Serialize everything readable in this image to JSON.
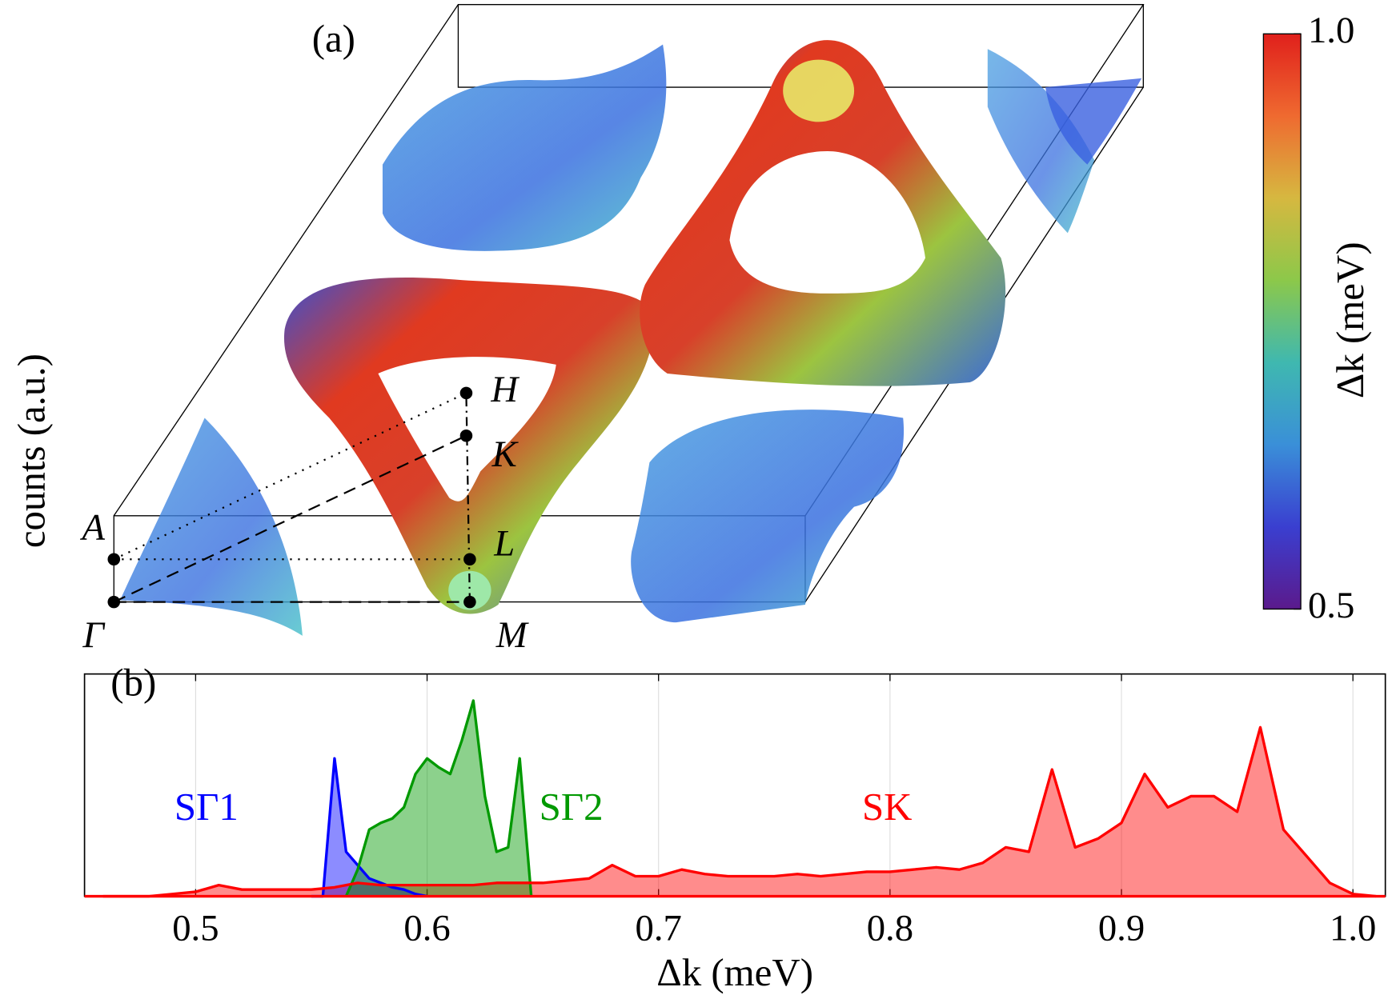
{
  "chart_data": [
    {
      "type": "surface",
      "label": "(a)",
      "colorbar_label": "Δk (meV)",
      "clim": [
        0.5,
        1.0
      ],
      "cticks": [
        0.5,
        {
          "value": 1.0,
          "label": "1.0"
        }
      ],
      "colormap": [
        "#5b1a8c",
        "#3a3fd0",
        "#3a8fd8",
        "#3fb8b0",
        "#8cc84a",
        "#d6b840",
        "#ef6a30",
        "#e0201c"
      ],
      "points": [
        "Γ",
        "A",
        "M",
        "L",
        "K",
        "H"
      ]
    },
    {
      "type": "area",
      "label": "(b)",
      "xlabel": "Δk (meV)",
      "ylabel": "counts (a.u.)",
      "xlim": [
        0.452,
        1.014
      ],
      "ylim": [
        0,
        100
      ],
      "xticks": [
        0.5,
        0.6,
        0.7,
        0.8,
        0.9,
        {
          "value": 1.0,
          "label": "1.0"
        }
      ],
      "grid": true,
      "series": [
        {
          "name": "SΓ1",
          "color": "#0000ff",
          "x": [
            0.55,
            0.555,
            0.56,
            0.565,
            0.57,
            0.575,
            0.58,
            0.585,
            0.59,
            0.595,
            0.6
          ],
          "values": [
            0,
            0,
            62,
            20,
            14,
            8,
            6,
            4,
            3,
            1,
            0
          ]
        },
        {
          "name": "SΓ2",
          "color": "#009900",
          "x": [
            0.565,
            0.57,
            0.575,
            0.58,
            0.585,
            0.59,
            0.595,
            0.6,
            0.605,
            0.61,
            0.615,
            0.62,
            0.625,
            0.63,
            0.635,
            0.64,
            0.645
          ],
          "values": [
            0,
            12,
            30,
            33,
            35,
            40,
            55,
            62,
            58,
            55,
            70,
            88,
            45,
            20,
            22,
            62,
            0
          ]
        },
        {
          "name": "SK",
          "color": "#ff0000",
          "x": [
            0.46,
            0.47,
            0.48,
            0.49,
            0.5,
            0.51,
            0.52,
            0.53,
            0.54,
            0.55,
            0.56,
            0.57,
            0.58,
            0.59,
            0.6,
            0.61,
            0.62,
            0.63,
            0.64,
            0.65,
            0.66,
            0.67,
            0.68,
            0.69,
            0.7,
            0.71,
            0.72,
            0.73,
            0.74,
            0.75,
            0.76,
            0.77,
            0.78,
            0.79,
            0.8,
            0.81,
            0.82,
            0.83,
            0.84,
            0.85,
            0.86,
            0.87,
            0.88,
            0.89,
            0.9,
            0.91,
            0.92,
            0.93,
            0.94,
            0.95,
            0.96,
            0.97,
            0.98,
            0.99,
            1.0,
            1.01
          ],
          "values": [
            0,
            0,
            0,
            1,
            2,
            5,
            3,
            3,
            3,
            3,
            4,
            6,
            5,
            5,
            5,
            5,
            5,
            6,
            6,
            6,
            7,
            8,
            14,
            9,
            9,
            12,
            10,
            9,
            9,
            9,
            10,
            9,
            10,
            11,
            11,
            12,
            13,
            12,
            15,
            22,
            20,
            57,
            22,
            26,
            33,
            55,
            40,
            45,
            45,
            38,
            76,
            30,
            18,
            6,
            1,
            0
          ]
        }
      ]
    }
  ]
}
